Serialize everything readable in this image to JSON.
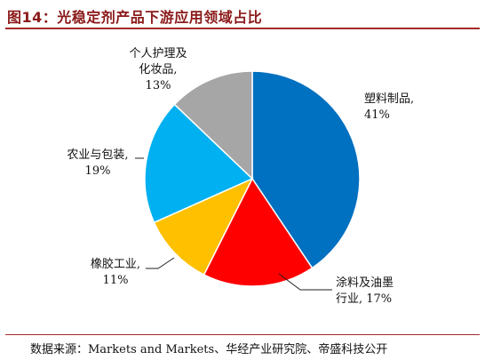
{
  "header": {
    "title": "图14：光稳定剂产品下游应用领域占比"
  },
  "chart_data": {
    "type": "pie",
    "title": "",
    "slices": [
      {
        "label_lines": [
          "塑料制品,",
          "41%"
        ],
        "value": 41,
        "color": "#0070c0"
      },
      {
        "label_lines": [
          "涂料及油墨",
          "行业, 17%"
        ],
        "value": 17,
        "color": "#ff0000"
      },
      {
        "label_lines": [
          "橡胶工业,",
          "11%"
        ],
        "value": 11,
        "color": "#ffc000"
      },
      {
        "label_lines": [
          "农业与包装,",
          "19%"
        ],
        "value": 19,
        "color": "#00b0f0"
      },
      {
        "label_lines": [
          "个人护理及",
          "化妆品,",
          "13%"
        ],
        "value": 13,
        "color": "#a6a6a6"
      }
    ],
    "start_angle_deg": 0,
    "direction": "clockwise",
    "legend": "none"
  },
  "footer": {
    "source": "数据来源：Markets and Markets、华经产业研究院、帝盛科技公开"
  }
}
